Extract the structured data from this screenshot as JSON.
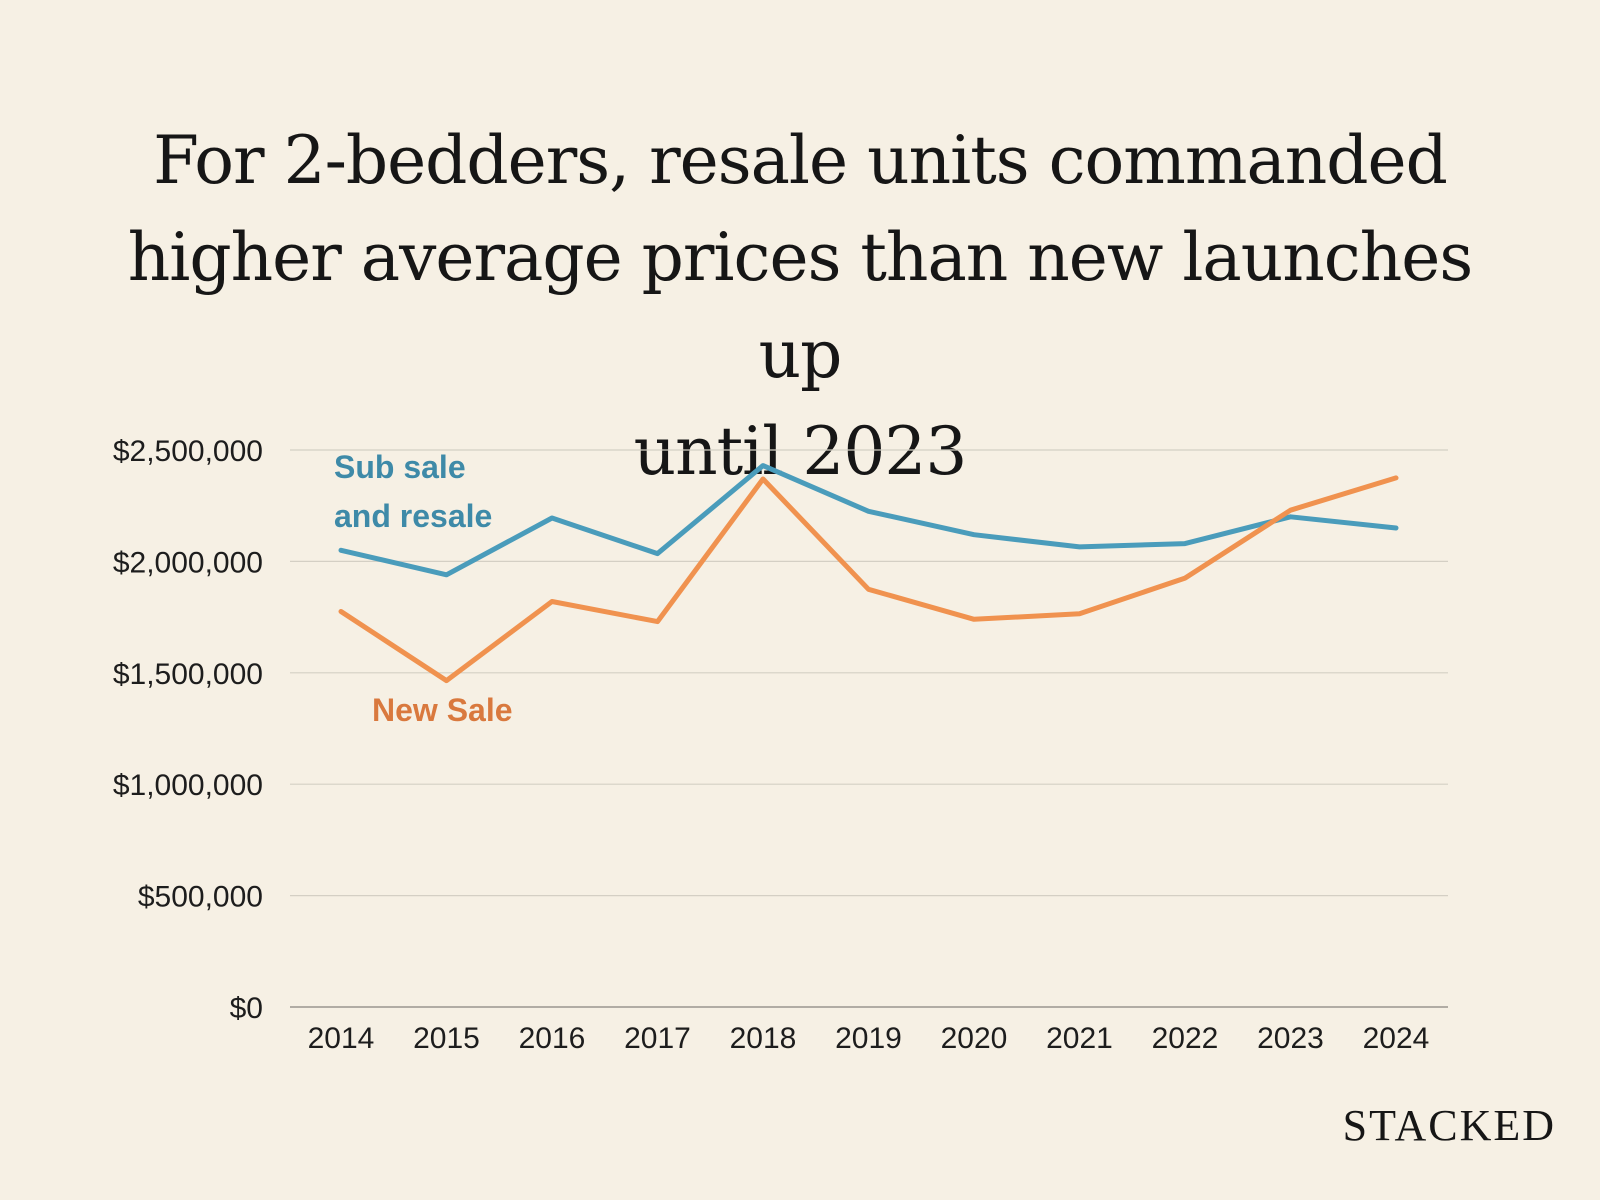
{
  "chart_data": {
    "type": "line",
    "title_lines": [
      "For 2-bedders, resale units commanded",
      "higher average prices than new launches up",
      "until 2023"
    ],
    "categories": [
      "2014",
      "2015",
      "2016",
      "2017",
      "2018",
      "2019",
      "2020",
      "2021",
      "2022",
      "2023",
      "2024"
    ],
    "series": [
      {
        "name": "Sub sale and resale",
        "label_lines": [
          "Sub sale",
          "and resale"
        ],
        "color": "#4a9cbb",
        "label_color": "#3e8aa8",
        "values": [
          2050000,
          1940000,
          2195000,
          2035000,
          2430000,
          2225000,
          2120000,
          2065000,
          2080000,
          2200000,
          2150000
        ]
      },
      {
        "name": "New Sale",
        "label_lines": [
          "New Sale"
        ],
        "color": "#f0924f",
        "label_color": "#d9793e",
        "values": [
          1775000,
          1465000,
          1820000,
          1730000,
          2370000,
          1875000,
          1740000,
          1765000,
          1925000,
          2230000,
          2375000
        ]
      }
    ],
    "ylim": [
      0,
      2500000
    ],
    "y_ticks": [
      0,
      500000,
      1000000,
      1500000,
      2000000,
      2500000
    ],
    "y_tick_labels": [
      "$0",
      "$500,000",
      "$1,000,000",
      "$1,500,000",
      "$2,000,000",
      "$2,500,000"
    ],
    "grid": true,
    "legend": "inline labels",
    "xlabel": "",
    "ylabel": ""
  },
  "brand": "STACKED"
}
